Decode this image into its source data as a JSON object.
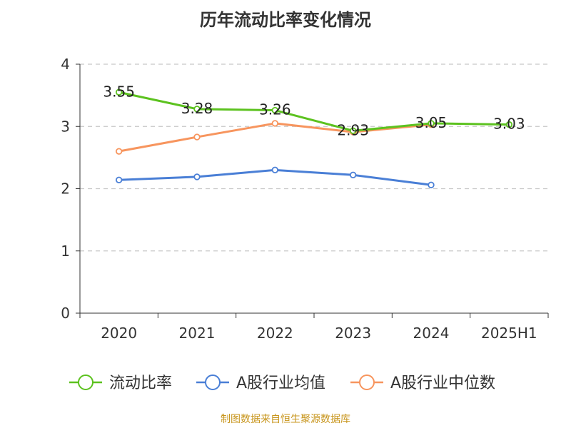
{
  "title": "历年流动比率变化情况",
  "source": "制图数据来自恒生聚源数据库",
  "chart_data": {
    "type": "line",
    "categories": [
      "2020",
      "2021",
      "2022",
      "2023",
      "2024",
      "2025H1"
    ],
    "ylim": [
      0,
      4
    ],
    "yticks": [
      0,
      1,
      2,
      3,
      4
    ],
    "grid": true,
    "legend_position": "bottom",
    "series": [
      {
        "name": "流动比率",
        "color": "#5cc21f",
        "values": [
          3.55,
          3.28,
          3.26,
          2.93,
          3.05,
          3.03
        ],
        "labels": [
          "3.55",
          "3.28",
          "3.26",
          "2.93",
          "3.05",
          "3.03"
        ]
      },
      {
        "name": "A股行业均值",
        "color": "#4a7fd6",
        "values": [
          2.14,
          2.19,
          2.3,
          2.22,
          2.06,
          null
        ]
      },
      {
        "name": "A股行业中位数",
        "color": "#f7955e",
        "values": [
          2.6,
          2.83,
          3.05,
          2.91,
          3.03,
          null
        ]
      }
    ]
  }
}
